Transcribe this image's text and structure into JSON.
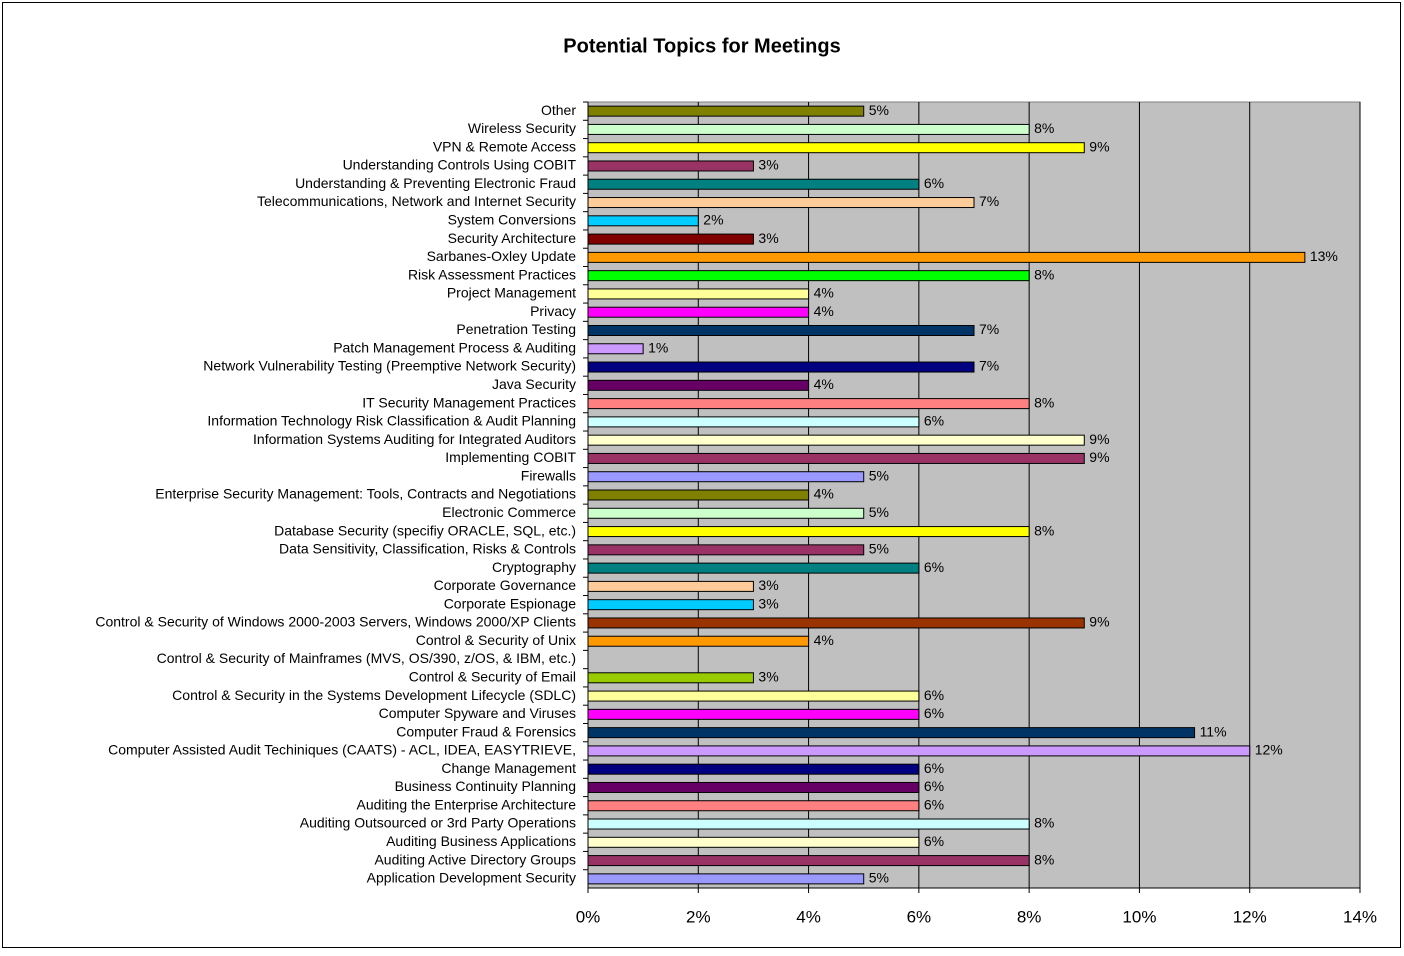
{
  "chart_data": {
    "type": "hbar",
    "title": "Potential Topics for Meetings",
    "categories": [
      "Other",
      "Wireless Security",
      "VPN & Remote Access",
      "Understanding Controls Using COBIT",
      "Understanding & Preventing Electronic Fraud",
      "Telecommunications, Network and Internet Security",
      "System Conversions",
      "Security Architecture",
      "Sarbanes-Oxley Update",
      "Risk Assessment Practices",
      "Project Management",
      "Privacy",
      "Penetration Testing",
      "Patch Management Process & Auditing",
      "Network Vulnerability Testing (Preemptive Network Security)",
      "Java Security",
      "IT Security Management Practices",
      "Information Technology Risk Classification & Audit Planning",
      "Information Systems Auditing for Integrated Auditors",
      "Implementing COBIT",
      "Firewalls",
      "Enterprise Security Management:  Tools, Contracts and Negotiations",
      "Electronic Commerce",
      "Database Security (specifiy ORACLE, SQL, etc.)",
      "Data Sensitivity, Classification, Risks & Controls",
      "Cryptography",
      "Corporate Governance",
      "Corporate Espionage",
      "Control & Security of Windows 2000-2003 Servers, Windows 2000/XP Clients",
      "Control & Security of Unix",
      "Control & Security of Mainframes (MVS, OS/390, z/OS, & IBM, etc.)",
      "Control & Security of Email",
      "Control & Security in the Systems Development Lifecycle (SDLC)",
      "Computer Spyware and Viruses",
      "Computer Fraud & Forensics",
      "Computer Assisted Audit Techiniques (CAATS) - ACL, IDEA, EASYTRIEVE,",
      "Change Management",
      "Business Continuity Planning",
      "Auditing the Enterprise Architecture",
      "Auditing Outsourced or 3rd Party Operations",
      "Auditing Business Applications",
      "Auditing Active Directory Groups",
      "Application Development Security"
    ],
    "values": [
      5,
      8,
      9,
      3,
      6,
      7,
      2,
      3,
      13,
      8,
      4,
      4,
      7,
      1,
      7,
      4,
      8,
      6,
      9,
      9,
      5,
      4,
      5,
      8,
      5,
      6,
      3,
      3,
      9,
      4,
      null,
      3,
      6,
      6,
      11,
      12,
      6,
      6,
      6,
      8,
      6,
      8,
      5
    ],
    "value_labels": [
      "5%",
      "8%",
      "9%",
      "3%",
      "6%",
      "7%",
      "2%",
      "3%",
      "13%",
      "8%",
      "4%",
      "4%",
      "7%",
      "1%",
      "7%",
      "4%",
      "8%",
      "6%",
      "9%",
      "9%",
      "5%",
      "4%",
      "5%",
      "8%",
      "5%",
      "6%",
      "3%",
      "3%",
      "9%",
      "4%",
      null,
      "3%",
      "6%",
      "6%",
      "11%",
      "12%",
      "6%",
      "6%",
      "6%",
      "8%",
      "6%",
      "8%",
      "5%"
    ],
    "colors": [
      "#808000",
      "#CCFFCC",
      "#FFFF00",
      "#993366",
      "#008080",
      "#FFCC99",
      "#00CCFF",
      "#800000",
      "#FF9900",
      "#00FF00",
      "#FFFF99",
      "#FF00FF",
      "#003366",
      "#CC99FF",
      "#000080",
      "#660066",
      "#FF8080",
      "#CCFFFF",
      "#FFFFCC",
      "#993366",
      "#9999FF",
      "#808000",
      "#CCFFCC",
      "#FFFF00",
      "#993366",
      "#008080",
      "#FFCC99",
      "#00CCFF",
      "#993300",
      "#FF9900",
      null,
      "#99CC00",
      "#FFFF99",
      "#FF00FF",
      "#003366",
      "#CC99FF",
      "#000080",
      "#660066",
      "#FF8080",
      "#CCFFFF",
      "#FFFFCC",
      "#993366",
      "#9999FF"
    ],
    "xlim": [
      0,
      14
    ],
    "xticks": [
      {
        "value": 0,
        "label": "0%"
      },
      {
        "value": 2,
        "label": "2%"
      },
      {
        "value": 4,
        "label": "4%"
      },
      {
        "value": 6,
        "label": "6%"
      },
      {
        "value": 8,
        "label": "8%"
      },
      {
        "value": 10,
        "label": "10%"
      },
      {
        "value": 12,
        "label": "12%"
      },
      {
        "value": 14,
        "label": "14%"
      }
    ],
    "grid": true,
    "plot_background": "#C0C0C0"
  }
}
